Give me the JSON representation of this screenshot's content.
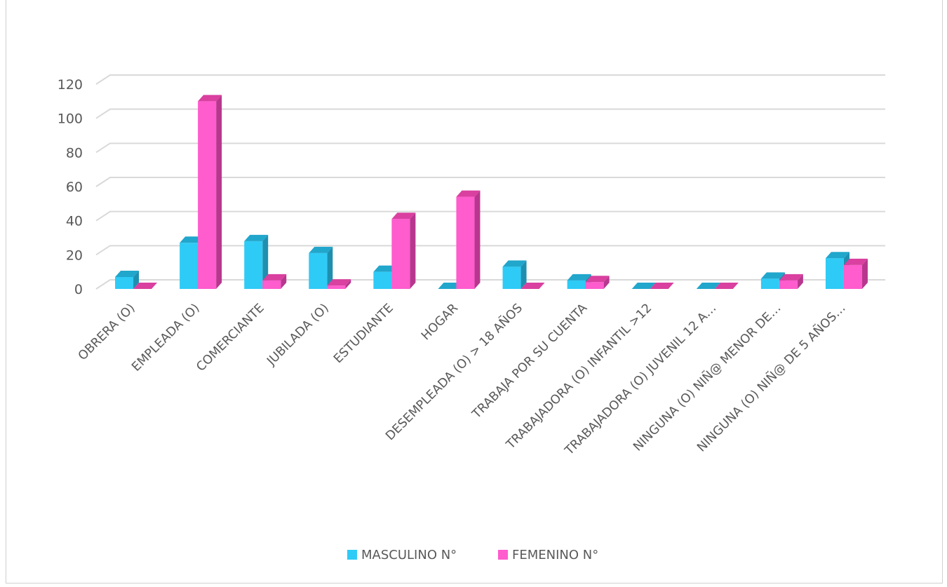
{
  "chart_data": {
    "type": "bar",
    "style": "3d-clustered-column",
    "title": "",
    "xlabel": "",
    "ylabel": "",
    "ylim": [
      0,
      120
    ],
    "yticks": [
      0,
      20,
      40,
      60,
      80,
      100,
      120
    ],
    "grid": true,
    "legend_position": "bottom",
    "categories": [
      "OBRERA (O)",
      "EMPLEADA (O)",
      "COMERCIANTE",
      "JUBILADA (O)",
      "ESTUDIANTE",
      "HOGAR",
      "DESEMPLEADA (O) > 18 AÑOS",
      "TRABAJA POR SU CUENTA",
      "TRABAJADORA (O) INFANTIL >12",
      "TRABAJADORA (O) JUVENIL 12 A…",
      "NINGUNA (O) NIÑ@ MENOR DE…",
      "NINGUNA (O)  NIÑ@ DE 5  AÑOS…"
    ],
    "series": [
      {
        "name": "MASCULINO N°",
        "color": "#2ecbf6",
        "side_color": "#1f8fb0",
        "top_color": "#21a6cc",
        "values": [
          7,
          27,
          28,
          21,
          10,
          0,
          13,
          5,
          0,
          0,
          6,
          18
        ]
      },
      {
        "name": "FEMENINO N°",
        "color": "#ff5ccd",
        "side_color": "#b8378e",
        "top_color": "#d9409f",
        "values": [
          0,
          110,
          5,
          2,
          41,
          54,
          0,
          4,
          0,
          0,
          5,
          14
        ]
      }
    ]
  }
}
